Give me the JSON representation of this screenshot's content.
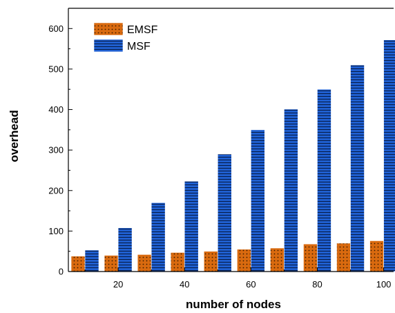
{
  "chart_data": {
    "type": "bar",
    "title": "",
    "xlabel": "number of nodes",
    "ylabel": "overhead",
    "categories": [
      10,
      20,
      30,
      40,
      50,
      60,
      70,
      80,
      90,
      100
    ],
    "x_ticks": [
      "20",
      "40",
      "60",
      "80",
      "100"
    ],
    "x_tick_values": [
      20,
      40,
      60,
      80,
      100
    ],
    "y_ticks": [
      "0",
      "100",
      "200",
      "300",
      "400",
      "500",
      "600"
    ],
    "y_tick_values": [
      0,
      100,
      200,
      300,
      400,
      500,
      600
    ],
    "xlim": [
      5,
      103
    ],
    "ylim": [
      0,
      650
    ],
    "grid": false,
    "legend_position": "top-left",
    "series": [
      {
        "name": "EMSF",
        "values": [
          38,
          40,
          42,
          47,
          50,
          55,
          58,
          68,
          70,
          76
        ],
        "color": "#d96a0f",
        "pattern": "dots"
      },
      {
        "name": "MSF",
        "values": [
          53,
          108,
          170,
          223,
          290,
          350,
          401,
          450,
          510,
          572
        ],
        "color": "#1a56c2",
        "pattern": "horizontal-lines"
      }
    ]
  }
}
